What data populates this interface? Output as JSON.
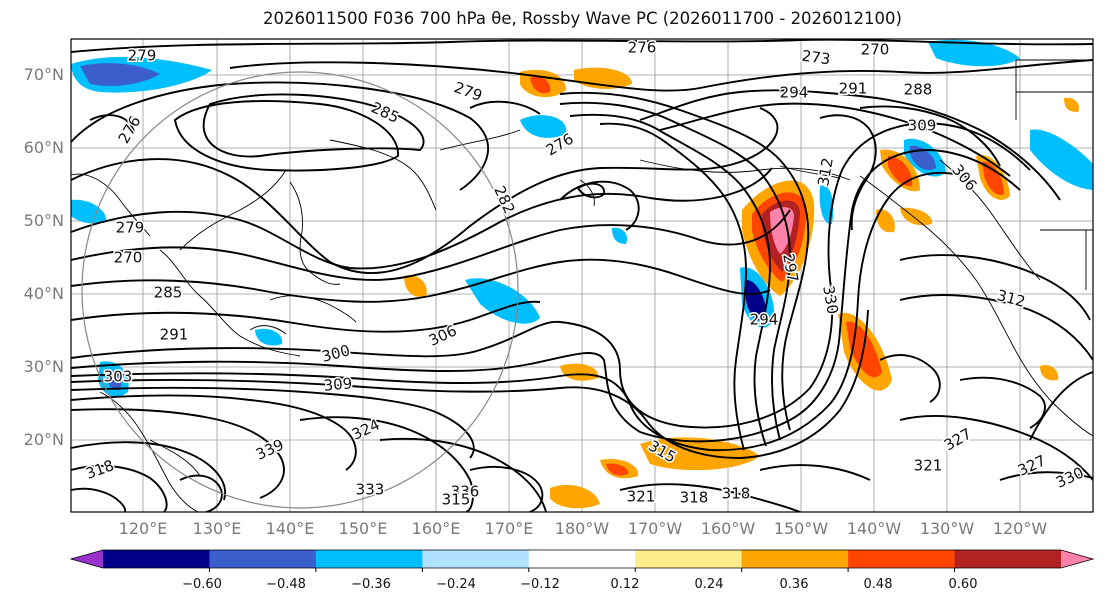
{
  "title": "2026011500 F036 700 hPa θe, Rossby Wave PC (2026011700 - 2026012100)",
  "lat_labels": [
    "70°N",
    "60°N",
    "50°N",
    "40°N",
    "30°N",
    "20°N"
  ],
  "lon_labels": [
    "120°E",
    "130°E",
    "140°E",
    "150°E",
    "160°E",
    "170°E",
    "180°W",
    "170°W",
    "160°W",
    "150°W",
    "140°W",
    "130°W",
    "120°W"
  ],
  "colorbar": {
    "colors": [
      "#9932cc",
      "#00008b",
      "#3a5fcd",
      "#00bfff",
      "#b0e2ff",
      "#ffffff",
      "#ffec8b",
      "#ffa500",
      "#ff4500",
      "#b22222",
      "#ff82ab"
    ],
    "tick_labels": [
      "−0.60",
      "−0.48",
      "−0.36",
      "−0.24",
      "−0.12",
      "0.12",
      "0.24",
      "0.36",
      "0.48",
      "0.60"
    ]
  },
  "contour_labels": [
    "276",
    "273",
    "270",
    "279",
    "294",
    "291",
    "288",
    "285",
    "279",
    "276",
    "276",
    "282",
    "309",
    "306",
    "270",
    "279",
    "285",
    "291",
    "300",
    "306",
    "303",
    "309",
    "312",
    "315",
    "318",
    "321",
    "324",
    "327",
    "330",
    "333",
    "339",
    "336",
    "315",
    "318",
    "321",
    "327",
    "330",
    "297",
    "294",
    "312",
    "318"
  ]
}
